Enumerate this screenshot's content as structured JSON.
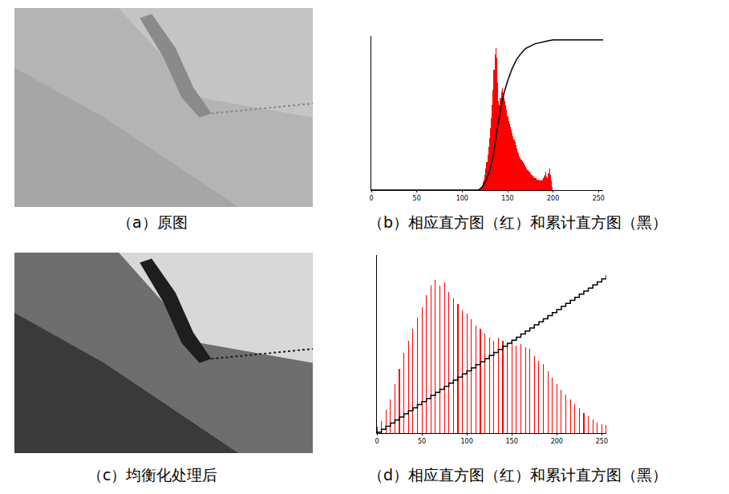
{
  "chart_data": [
    {
      "type": "bar",
      "title": "（b）相应直方图（红）和累计直方图（黑）",
      "xlim": [
        0,
        255
      ],
      "xticks": [
        0,
        50,
        100,
        150,
        200,
        250
      ],
      "ylim": [
        0,
        100
      ],
      "yticks": [],
      "tick_labels": "x",
      "grid": false,
      "series": [
        {
          "type": "bar",
          "color": "#ff0000",
          "x": [
            118,
            119,
            120,
            121,
            122,
            123,
            124,
            125,
            126,
            127,
            128,
            129,
            130,
            131,
            132,
            133,
            134,
            135,
            136,
            137,
            138,
            139,
            140,
            141,
            142,
            143,
            144,
            145,
            146,
            147,
            148,
            149,
            150,
            151,
            152,
            153,
            154,
            155,
            156,
            157,
            158,
            159,
            160,
            161,
            162,
            163,
            164,
            165,
            166,
            167,
            168,
            169,
            170,
            171,
            172,
            173,
            174,
            175,
            176,
            177,
            178,
            179,
            180,
            181,
            182,
            183,
            184,
            185,
            186,
            187,
            188,
            189,
            190,
            191,
            192,
            193,
            194,
            195,
            196,
            197,
            198,
            199,
            200
          ],
          "values": [
            0,
            0.5,
            1,
            2,
            3,
            5,
            7,
            10,
            14,
            18,
            23,
            28,
            34,
            40,
            47,
            55,
            65,
            78,
            88,
            92,
            86,
            70,
            58,
            55,
            60,
            64,
            66,
            63,
            60,
            58,
            55,
            52,
            48,
            45,
            43,
            41,
            39,
            37,
            35,
            33,
            31,
            29,
            27,
            25,
            24,
            22,
            21,
            20,
            19,
            18,
            17,
            16,
            15,
            14,
            13,
            12,
            12,
            11,
            10,
            10,
            9,
            9,
            8,
            8,
            7,
            7,
            7,
            6,
            6,
            6,
            7,
            8,
            9,
            10,
            12,
            9,
            8,
            11,
            14,
            10,
            6,
            2,
            0
          ]
        },
        {
          "type": "line",
          "color": "#000000",
          "line_style": "solid",
          "x": [
            0,
            118,
            122,
            126,
            130,
            134,
            138,
            142,
            146,
            150,
            155,
            160,
            165,
            170,
            180,
            190,
            195,
            200,
            255
          ],
          "values": [
            0,
            0,
            2,
            6,
            12,
            22,
            38,
            52,
            63,
            71,
            79,
            85,
            89,
            92,
            95,
            96.5,
            97,
            97.5,
            97.5
          ]
        }
      ]
    },
    {
      "type": "bar",
      "title": "（d）相应直方图（红）和累计直方图（黑）",
      "xlim": [
        0,
        255
      ],
      "xticks": [
        0,
        50,
        100,
        150,
        200,
        250
      ],
      "ylim": [
        0,
        116
      ],
      "yticks": [],
      "tick_labels": "x",
      "grid": false,
      "series": [
        {
          "type": "bar",
          "color": "#ff0000",
          "x": [
            0,
            5,
            10,
            15,
            20,
            25,
            30,
            35,
            40,
            45,
            50,
            55,
            60,
            65,
            70,
            75,
            80,
            85,
            90,
            95,
            100,
            105,
            110,
            115,
            120,
            125,
            130,
            135,
            140,
            145,
            150,
            155,
            160,
            165,
            170,
            175,
            180,
            185,
            190,
            195,
            200,
            205,
            210,
            215,
            220,
            225,
            230,
            235,
            240,
            245,
            250,
            255
          ],
          "values": [
            4,
            8,
            15,
            22,
            32,
            42,
            52,
            60,
            68,
            75,
            82,
            90,
            96,
            100,
            96,
            98,
            92,
            88,
            84,
            80,
            78,
            74,
            70,
            68,
            65,
            62,
            60,
            62,
            60,
            58,
            59,
            57,
            58,
            56,
            55,
            50,
            47,
            45,
            40,
            36,
            32,
            28,
            25,
            22,
            19,
            16,
            13,
            11,
            9,
            7,
            6,
            5
          ]
        },
        {
          "type": "line",
          "color": "#000000",
          "line_style": "step",
          "x": [
            0,
            5,
            10,
            15,
            20,
            25,
            30,
            35,
            40,
            45,
            50,
            55,
            60,
            65,
            70,
            75,
            80,
            85,
            90,
            95,
            100,
            105,
            110,
            115,
            120,
            125,
            130,
            135,
            140,
            145,
            150,
            155,
            160,
            165,
            170,
            175,
            180,
            185,
            190,
            195,
            200,
            205,
            210,
            215,
            220,
            225,
            230,
            235,
            240,
            245,
            250,
            255
          ],
          "values": [
            0.5,
            2.5,
            4.5,
            6.5,
            8.5,
            10.5,
            12.5,
            14.5,
            16.5,
            18.5,
            20.5,
            22.5,
            24.5,
            26.5,
            28.5,
            30.5,
            32.5,
            34.5,
            36.5,
            38.5,
            40.5,
            42.5,
            44.5,
            46.5,
            48.5,
            50.5,
            52.5,
            54.5,
            56.5,
            58.5,
            60.5,
            62.5,
            64.5,
            66.5,
            68.5,
            70.5,
            72.5,
            74.5,
            76.5,
            78.5,
            80.5,
            82.5,
            84.5,
            86.5,
            88.5,
            90.5,
            92.5,
            94.5,
            96.5,
            98.5,
            100.5,
            103
          ]
        }
      ]
    }
  ],
  "images": [
    {
      "title": "（a）原图"
    },
    {
      "title": "（c）均衡化处理后"
    }
  ]
}
